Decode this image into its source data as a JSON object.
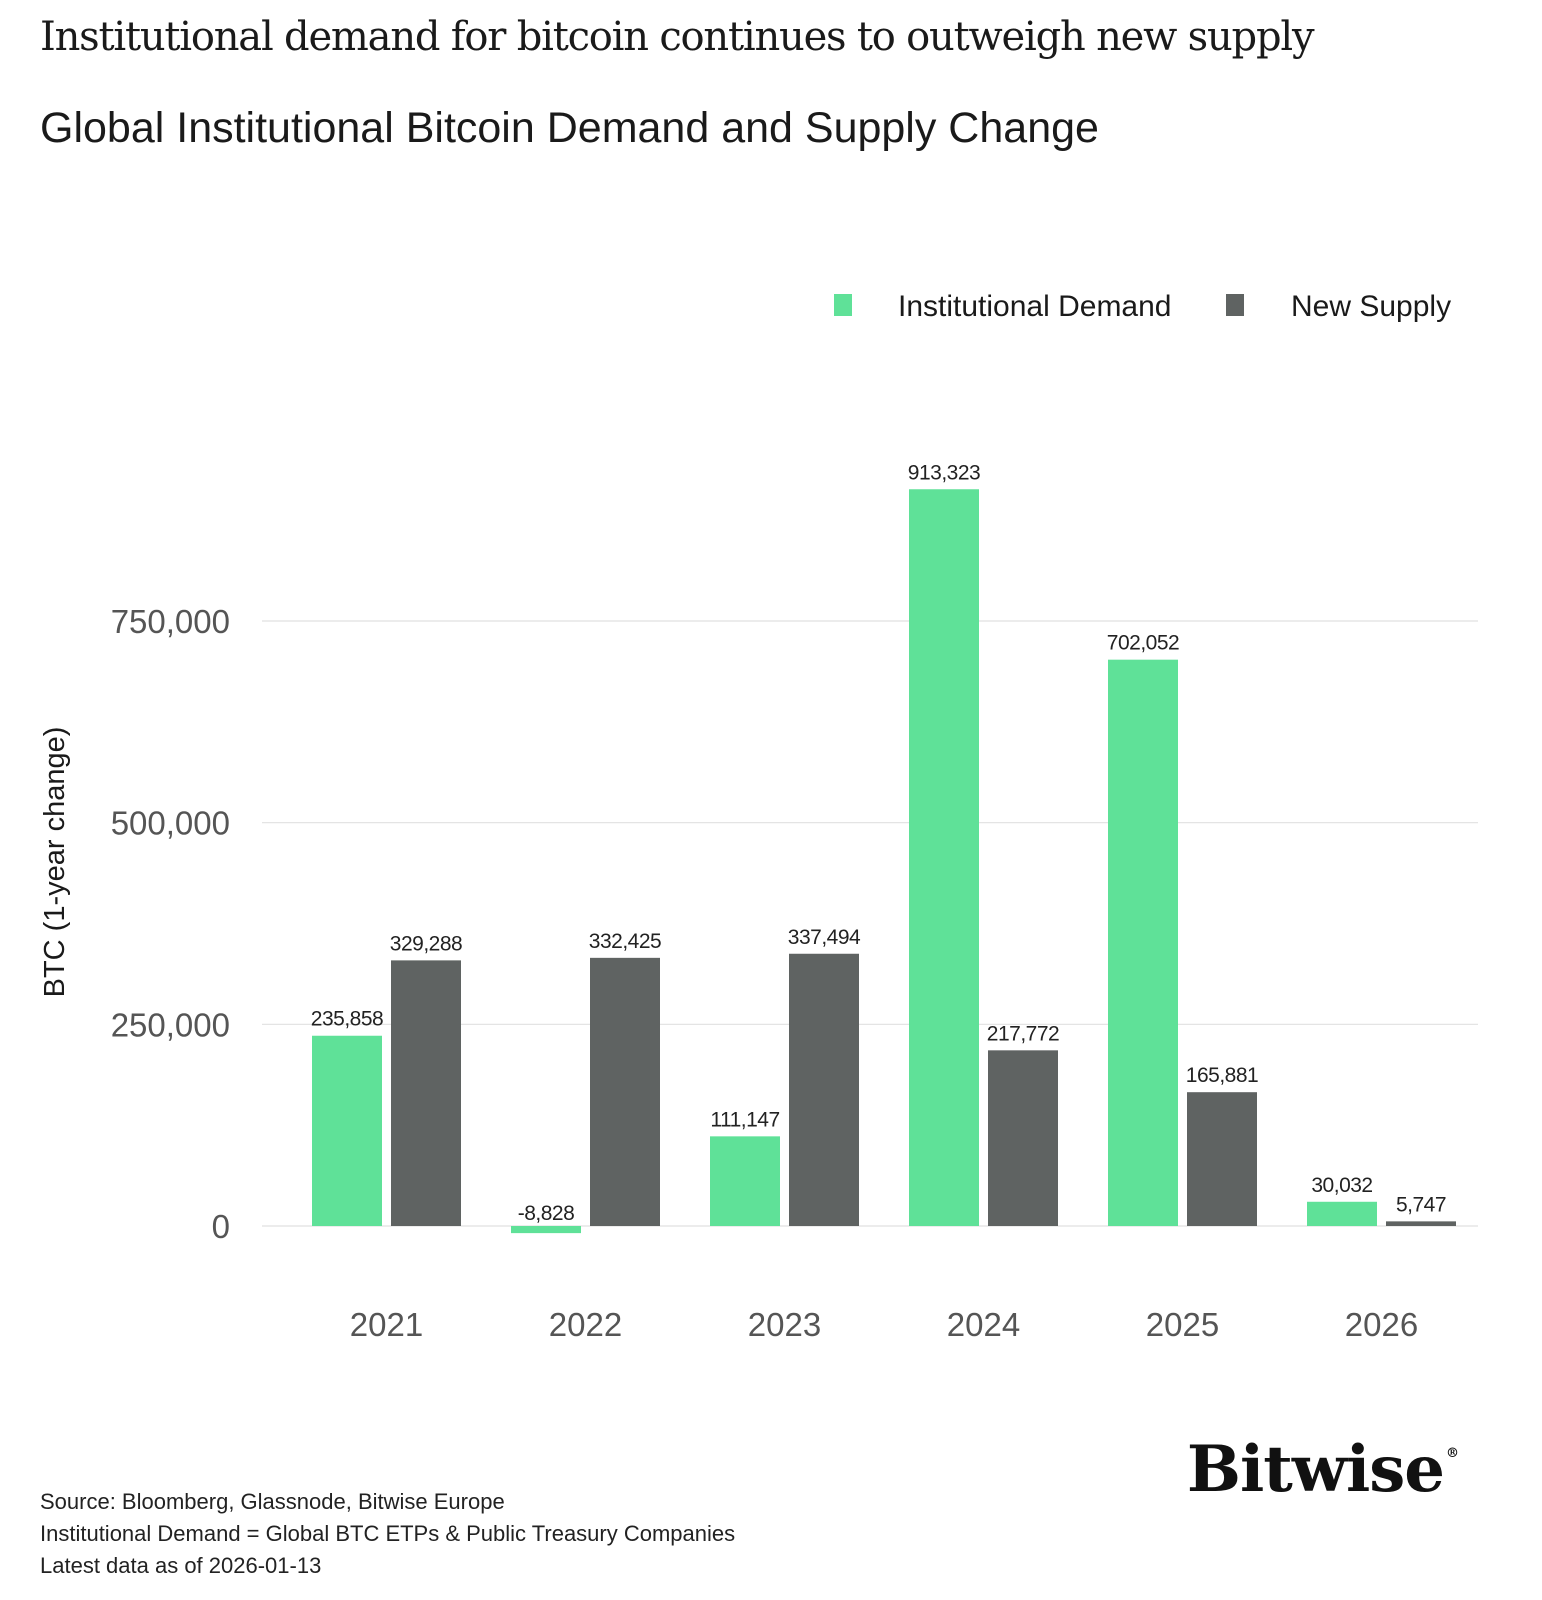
{
  "headline": "Institutional demand for bitcoin continues to outweigh new supply",
  "chart_data": {
    "type": "bar",
    "title": "Global Institutional Bitcoin Demand and Supply Change",
    "categories": [
      "2021",
      "2022",
      "2023",
      "2024",
      "2025",
      "2026"
    ],
    "series": [
      {
        "name": "Institutional Demand",
        "color": "#5fe198",
        "values": [
          235858,
          -8828,
          111147,
          913323,
          702052,
          30032
        ],
        "labels": [
          "235,858",
          "-8,828",
          "111,147",
          "913,323",
          "702,052",
          "30,032"
        ]
      },
      {
        "name": "New Supply",
        "color": "#5f6362",
        "values": [
          329288,
          332425,
          337494,
          217772,
          165881,
          5747
        ],
        "labels": [
          "329,288",
          "332,425",
          "337,494",
          "217,772",
          "165,881",
          "5,747"
        ]
      }
    ],
    "xlabel": "",
    "ylabel": "BTC (1-year change)",
    "ylim": [
      -40000,
      1000000
    ],
    "yticks": [
      0,
      250000,
      500000,
      750000
    ],
    "ytick_labels": [
      "0",
      "250,000",
      "500,000",
      "750,000"
    ],
    "grid": true,
    "legend_position": "top-right"
  },
  "footer": {
    "source": "Source: Bloomberg, Glassnode, Bitwise Europe",
    "definition": "Institutional Demand = Global BTC ETPs & Public Treasury Companies",
    "latest": "Latest data as of 2026-01-13"
  },
  "brand": {
    "name": "Bitwise",
    "mark": "®"
  }
}
